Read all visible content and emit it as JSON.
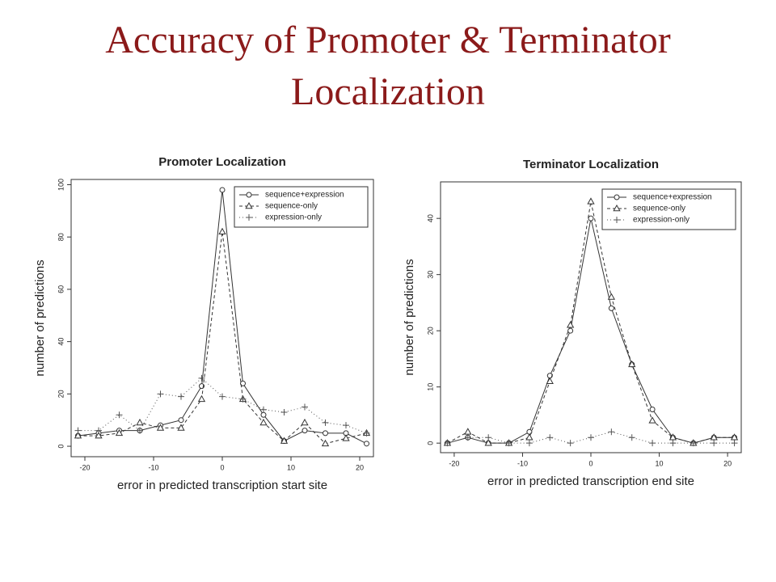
{
  "title": "Accuracy of Promoter & Terminator Localization",
  "chart_data": [
    {
      "type": "line",
      "title": "Promoter Localization",
      "x_label": "error in predicted transcription start site",
      "y_label": "number of predictions",
      "x": [
        -21,
        -18,
        -15,
        -12,
        -9,
        -6,
        -3,
        0,
        3,
        6,
        9,
        12,
        15,
        18,
        21
      ],
      "series": [
        {
          "name": "sequence+expression",
          "color": "#333333",
          "line_style": "solid",
          "marker": "circle",
          "values": [
            4,
            5,
            6,
            6,
            8,
            10,
            23,
            98,
            24,
            12,
            2,
            6,
            5,
            5,
            1
          ]
        },
        {
          "name": "sequence-only",
          "color": "#333333",
          "line_style": "dashed",
          "marker": "triangle",
          "values": [
            4,
            4,
            5,
            9,
            7,
            7,
            18,
            82,
            18,
            9,
            2,
            9,
            1,
            3,
            5
          ]
        },
        {
          "name": "expression-only",
          "color": "#555555",
          "line_style": "dotted",
          "marker": "plus",
          "values": [
            6,
            6,
            12,
            6,
            20,
            19,
            26,
            19,
            18,
            14,
            13,
            15,
            9,
            8,
            5
          ]
        }
      ],
      "xlim": [
        -22,
        22
      ],
      "ylim": [
        -4,
        102
      ],
      "xticks": [
        -20,
        -10,
        0,
        10,
        20
      ],
      "yticks": [
        0,
        20,
        40,
        60,
        80,
        100
      ],
      "legend": "upper right"
    },
    {
      "type": "line",
      "title": "Terminator Localization",
      "x_label": "error in predicted transcription end site",
      "y_label": "number of predictions",
      "x": [
        -21,
        -18,
        -15,
        -12,
        -9,
        -6,
        -3,
        0,
        3,
        6,
        9,
        12,
        15,
        18,
        21
      ],
      "series": [
        {
          "name": "sequence+expression",
          "color": "#333333",
          "line_style": "solid",
          "marker": "circle",
          "values": [
            0,
            1,
            0,
            0,
            2,
            12,
            20,
            40,
            24,
            14,
            6,
            1,
            0,
            1,
            1
          ]
        },
        {
          "name": "sequence-only",
          "color": "#333333",
          "line_style": "dashed",
          "marker": "triangle",
          "values": [
            0,
            2,
            0,
            0,
            1,
            11,
            21,
            43,
            26,
            14,
            4,
            1,
            0,
            1,
            1
          ]
        },
        {
          "name": "expression-only",
          "color": "#555555",
          "line_style": "dotted",
          "marker": "plus",
          "values": [
            0,
            1,
            1,
            0,
            0,
            1,
            0,
            1,
            2,
            1,
            0,
            0,
            0,
            0,
            0
          ]
        }
      ],
      "xlim": [
        -22,
        22
      ],
      "ylim": [
        -1.7,
        46.5
      ],
      "xticks": [
        -20,
        -10,
        0,
        10,
        20
      ],
      "yticks": [
        0,
        10,
        20,
        30,
        40
      ],
      "legend": "upper right"
    }
  ]
}
